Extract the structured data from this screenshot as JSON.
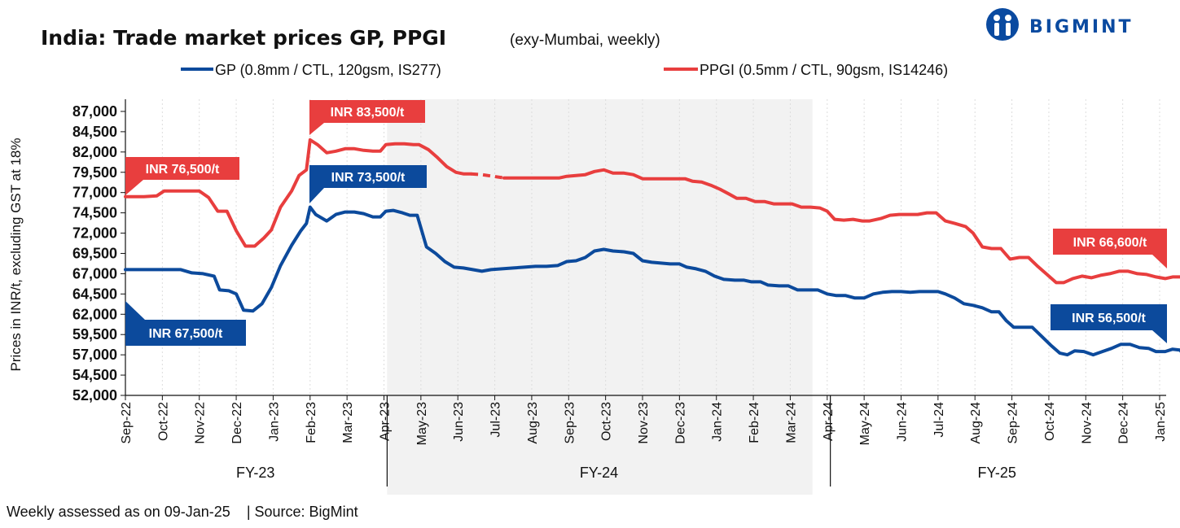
{
  "header": {
    "title": "India: Trade market prices GP, PPGI",
    "subtitle": "(exy-Mumbai, weekly)",
    "brand": "BIGMINT"
  },
  "footer": {
    "assessed": "Weekly assessed as on 09-Jan-25",
    "source": "| Source: BigMint"
  },
  "colors": {
    "gp": "#0c4a9c",
    "ppgi": "#e83e3e",
    "fy24_shade": "#f2f2f2",
    "grid": "#dddddd"
  },
  "chart_data": {
    "type": "line",
    "ylabel": "Prices in INR/t, excluding GST at 18%",
    "ylim": [
      52000,
      88500
    ],
    "yticks": [
      "52,000",
      "54,500",
      "57,000",
      "59,500",
      "62,000",
      "64,500",
      "67,000",
      "69,500",
      "72,000",
      "74,500",
      "77,000",
      "79,500",
      "82,000",
      "84,500",
      "87,000"
    ],
    "ytick_values": [
      52000,
      54500,
      57000,
      59500,
      62000,
      64500,
      67000,
      69500,
      72000,
      74500,
      77000,
      79500,
      82000,
      84500,
      87000
    ],
    "xticks": [
      "Sep-22",
      "Oct-22",
      "Nov-22",
      "Dec-22",
      "Jan-23",
      "Feb-23",
      "Mar-23",
      "Apr-23",
      "May-23",
      "Jun-23",
      "Jul-23",
      "Aug-23",
      "Sep-23",
      "Oct-23",
      "Nov-23",
      "Dec-23",
      "Jan-24",
      "Feb-24",
      "Mar-24",
      "Apr-24",
      "May-24",
      "Jun-24",
      "Jul-24",
      "Aug-24",
      "Sep-24",
      "Oct-24",
      "Nov-24",
      "Dec-24",
      "Jan-25"
    ],
    "fiscal_years": [
      {
        "label": "FY-23",
        "start": 0,
        "end": 6.6
      },
      {
        "label": "FY-24",
        "start": 6.6,
        "end": 18.6,
        "shaded": true
      },
      {
        "label": "FY-25",
        "start": 18.6,
        "end": 28.15
      }
    ],
    "xmax": 28.15,
    "series": [
      {
        "name": "GP (0.8mm / CTL, 120gsm, IS277)",
        "color": "#0c4a9c",
        "points": [
          [
            0,
            67500
          ],
          [
            0.5,
            67500
          ],
          [
            1,
            67500
          ],
          [
            1.5,
            67500
          ],
          [
            1.8,
            67100
          ],
          [
            2.1,
            67000
          ],
          [
            2.4,
            66700
          ],
          [
            2.55,
            65000
          ],
          [
            2.8,
            64900
          ],
          [
            3.0,
            64500
          ],
          [
            3.2,
            62500
          ],
          [
            3.45,
            62400
          ],
          [
            3.7,
            63300
          ],
          [
            3.95,
            65300
          ],
          [
            4.2,
            68000
          ],
          [
            4.5,
            70500
          ],
          [
            4.75,
            72300
          ],
          [
            4.9,
            73200
          ],
          [
            5.0,
            75200
          ],
          [
            5.15,
            74300
          ],
          [
            5.45,
            73500
          ],
          [
            5.7,
            74300
          ],
          [
            5.95,
            74600
          ],
          [
            6.2,
            74600
          ],
          [
            6.45,
            74400
          ],
          [
            6.7,
            74000
          ],
          [
            6.9,
            74000
          ],
          [
            7.05,
            74700
          ],
          [
            7.25,
            74800
          ],
          [
            7.5,
            74500
          ],
          [
            7.7,
            74200
          ],
          [
            7.9,
            74200
          ],
          [
            8.15,
            70300
          ],
          [
            8.4,
            69500
          ],
          [
            8.65,
            68500
          ],
          [
            8.9,
            67800
          ],
          [
            9.15,
            67700
          ],
          [
            9.4,
            67500
          ],
          [
            9.65,
            67300
          ],
          [
            9.9,
            67500
          ],
          [
            10.2,
            67600
          ],
          [
            10.5,
            67700
          ],
          [
            10.8,
            67800
          ],
          [
            11.1,
            67900
          ],
          [
            11.4,
            67900
          ],
          [
            11.7,
            68000
          ],
          [
            11.95,
            68500
          ],
          [
            12.2,
            68600
          ],
          [
            12.45,
            69000
          ],
          [
            12.7,
            69800
          ],
          [
            12.95,
            70000
          ],
          [
            13.2,
            69800
          ],
          [
            13.5,
            69700
          ],
          [
            13.75,
            69500
          ],
          [
            14.0,
            68600
          ],
          [
            14.25,
            68400
          ],
          [
            14.5,
            68300
          ],
          [
            14.75,
            68200
          ],
          [
            15.0,
            68200
          ],
          [
            15.2,
            67800
          ],
          [
            15.45,
            67600
          ],
          [
            15.7,
            67300
          ],
          [
            15.95,
            66700
          ],
          [
            16.2,
            66300
          ],
          [
            16.5,
            66200
          ],
          [
            16.75,
            66200
          ],
          [
            16.95,
            66000
          ],
          [
            17.2,
            66000
          ],
          [
            17.4,
            65600
          ],
          [
            17.7,
            65500
          ],
          [
            17.95,
            65500
          ],
          [
            18.2,
            65000
          ],
          [
            18.5,
            65000
          ],
          [
            18.75,
            65000
          ],
          [
            19.0,
            64500
          ],
          [
            19.25,
            64300
          ],
          [
            19.5,
            64300
          ],
          [
            19.75,
            64000
          ],
          [
            20.0,
            64000
          ],
          [
            20.25,
            64500
          ],
          [
            20.5,
            64700
          ],
          [
            20.75,
            64800
          ],
          [
            21.0,
            64800
          ],
          [
            21.25,
            64700
          ],
          [
            21.5,
            64800
          ],
          [
            21.75,
            64800
          ],
          [
            22.0,
            64800
          ],
          [
            22.2,
            64500
          ],
          [
            22.45,
            64000
          ],
          [
            22.7,
            63300
          ],
          [
            22.95,
            63100
          ],
          [
            23.2,
            62800
          ],
          [
            23.45,
            62300
          ],
          [
            23.65,
            62300
          ],
          [
            23.85,
            61200
          ],
          [
            24.05,
            60400
          ],
          [
            24.3,
            60400
          ],
          [
            24.55,
            60400
          ],
          [
            24.8,
            59300
          ],
          [
            25.05,
            58200
          ],
          [
            25.3,
            57200
          ],
          [
            25.5,
            57000
          ],
          [
            25.7,
            57500
          ],
          [
            25.95,
            57400
          ],
          [
            26.2,
            57000
          ],
          [
            26.45,
            57400
          ],
          [
            26.7,
            57800
          ],
          [
            26.95,
            58300
          ],
          [
            27.2,
            58300
          ],
          [
            27.45,
            57900
          ],
          [
            27.7,
            57800
          ],
          [
            27.9,
            57400
          ],
          [
            28.15,
            57400
          ],
          [
            28.35,
            57700
          ],
          [
            28.55,
            57600
          ],
          [
            28.75,
            56500
          ]
        ]
      },
      {
        "name": "PPGI (0.5mm / CTL, 90gsm, IS14246)",
        "color": "#e83e3e",
        "points": [
          [
            0,
            76500
          ],
          [
            0.5,
            76500
          ],
          [
            0.85,
            76600
          ],
          [
            1.05,
            77200
          ],
          [
            1.5,
            77200
          ],
          [
            2.0,
            77200
          ],
          [
            2.25,
            76400
          ],
          [
            2.5,
            74700
          ],
          [
            2.75,
            74700
          ],
          [
            3.0,
            72300
          ],
          [
            3.25,
            70400
          ],
          [
            3.5,
            70400
          ],
          [
            3.75,
            71400
          ],
          [
            3.95,
            72400
          ],
          [
            4.2,
            75200
          ],
          [
            4.5,
            77200
          ],
          [
            4.7,
            79100
          ],
          [
            4.9,
            79800
          ],
          [
            5.0,
            83500
          ],
          [
            5.2,
            82900
          ],
          [
            5.45,
            81900
          ],
          [
            5.7,
            82100
          ],
          [
            5.95,
            82400
          ],
          [
            6.2,
            82400
          ],
          [
            6.45,
            82200
          ],
          [
            6.7,
            82100
          ],
          [
            6.9,
            82100
          ],
          [
            7.05,
            82900
          ],
          [
            7.3,
            83000
          ],
          [
            7.55,
            83000
          ],
          [
            7.8,
            82900
          ],
          [
            7.95,
            82900
          ],
          [
            8.2,
            82300
          ],
          [
            8.45,
            81300
          ],
          [
            8.7,
            80200
          ],
          [
            8.95,
            79500
          ],
          [
            9.15,
            79300
          ],
          [
            9.35,
            79300
          ]
        ],
        "points_dashed": [
          [
            9.35,
            79300
          ],
          [
            9.65,
            79200
          ],
          [
            9.95,
            79000
          ],
          [
            10.25,
            78800
          ]
        ],
        "points_after": [
          [
            10.25,
            78800
          ],
          [
            10.6,
            78800
          ],
          [
            11.0,
            78800
          ],
          [
            11.4,
            78800
          ],
          [
            11.75,
            78800
          ],
          [
            11.95,
            79000
          ],
          [
            12.2,
            79100
          ],
          [
            12.45,
            79200
          ],
          [
            12.7,
            79600
          ],
          [
            12.95,
            79800
          ],
          [
            13.2,
            79400
          ],
          [
            13.5,
            79400
          ],
          [
            13.75,
            79200
          ],
          [
            14.0,
            78700
          ],
          [
            14.3,
            78700
          ],
          [
            14.6,
            78700
          ],
          [
            14.9,
            78700
          ],
          [
            15.15,
            78700
          ],
          [
            15.35,
            78400
          ],
          [
            15.6,
            78300
          ],
          [
            15.85,
            77900
          ],
          [
            16.1,
            77400
          ],
          [
            16.35,
            76800
          ],
          [
            16.55,
            76300
          ],
          [
            16.8,
            76300
          ],
          [
            17.05,
            75900
          ],
          [
            17.3,
            75900
          ],
          [
            17.55,
            75600
          ],
          [
            17.8,
            75600
          ],
          [
            18.05,
            75600
          ],
          [
            18.3,
            75200
          ],
          [
            18.55,
            75200
          ],
          [
            18.8,
            75100
          ],
          [
            19.0,
            74700
          ],
          [
            19.2,
            73700
          ],
          [
            19.45,
            73600
          ],
          [
            19.7,
            73700
          ],
          [
            19.95,
            73500
          ],
          [
            20.15,
            73500
          ],
          [
            20.45,
            73800
          ],
          [
            20.7,
            74200
          ],
          [
            20.95,
            74300
          ],
          [
            21.2,
            74300
          ],
          [
            21.45,
            74300
          ],
          [
            21.7,
            74500
          ],
          [
            21.95,
            74500
          ],
          [
            22.2,
            73500
          ],
          [
            22.45,
            73200
          ],
          [
            22.75,
            72800
          ],
          [
            22.95,
            72000
          ],
          [
            23.2,
            70300
          ],
          [
            23.45,
            70100
          ],
          [
            23.7,
            70100
          ],
          [
            23.95,
            68800
          ],
          [
            24.2,
            69000
          ],
          [
            24.45,
            69000
          ],
          [
            24.7,
            67900
          ],
          [
            24.95,
            66900
          ],
          [
            25.2,
            65900
          ],
          [
            25.4,
            65900
          ],
          [
            25.65,
            66400
          ],
          [
            25.9,
            66700
          ],
          [
            26.15,
            66500
          ],
          [
            26.4,
            66800
          ],
          [
            26.65,
            67000
          ],
          [
            26.9,
            67300
          ],
          [
            27.15,
            67300
          ],
          [
            27.4,
            67000
          ],
          [
            27.65,
            66900
          ],
          [
            27.9,
            66600
          ],
          [
            28.15,
            66400
          ],
          [
            28.35,
            66600
          ],
          [
            28.55,
            66600
          ],
          [
            28.75,
            66600
          ]
        ]
      }
    ],
    "annotations": [
      {
        "text": "INR 76,500/t",
        "series": "ppgi"
      },
      {
        "text": "INR 83,500/t",
        "series": "ppgi"
      },
      {
        "text": "INR 73,500/t",
        "series": "gp"
      },
      {
        "text": "INR 67,500/t",
        "series": "gp"
      },
      {
        "text": "INR 66,600/t",
        "series": "ppgi"
      },
      {
        "text": "INR 56,500/t",
        "series": "gp"
      }
    ]
  }
}
